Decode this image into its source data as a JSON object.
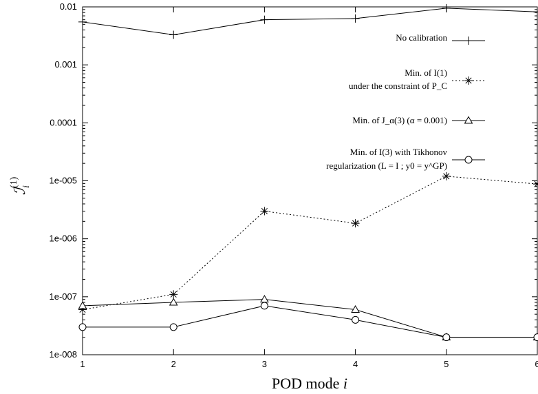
{
  "chart_data": {
    "type": "line",
    "x": [
      1,
      2,
      3,
      4,
      5,
      6
    ],
    "xlabel": "POD mode i",
    "ylabel": "I_i^(1)",
    "xlim": [
      1,
      6
    ],
    "ylim": [
      1e-08,
      0.01
    ],
    "yscale": "log",
    "x_tick_labels": [
      "1",
      "2",
      "3",
      "4",
      "5",
      "6"
    ],
    "y_tick_labels": [
      "1e-008",
      "1e-007",
      "1e-006",
      "1e-005",
      "0.0001",
      "0.001",
      "0.01"
    ],
    "grid": false,
    "legend_position": "top-right",
    "series": [
      {
        "name": "No calibration",
        "values": [
          0.0055,
          0.0033,
          0.006,
          0.0063,
          0.0095,
          0.0082
        ],
        "marker": "plus",
        "line": "solid"
      },
      {
        "name": "Min. of I(1) under the constraint of P_C",
        "legend_lines": [
          "Min. of I(1)",
          "under the constraint of P_C"
        ],
        "values": [
          6e-08,
          1.1e-07,
          3e-06,
          1.85e-06,
          1.2e-05,
          8.8e-06
        ],
        "marker": "asterisk",
        "line": "dotted"
      },
      {
        "name": "Min. of J_α(3) (α = 0.001)",
        "legend_lines": [
          "Min. of J_α(3) (α = 0.001)"
        ],
        "values": [
          7e-08,
          8e-08,
          9e-08,
          6e-08,
          2e-08,
          2e-08
        ],
        "marker": "triangle",
        "line": "solid"
      },
      {
        "name": "Min. of I(3) with Tikhonov regularization (L = I ; y0 = y^GP)",
        "legend_lines": [
          "Min. of I(3) with Tikhonov",
          "regularization (L = I ; y0 = y^GP)"
        ],
        "values": [
          3e-08,
          3e-08,
          7e-08,
          4e-08,
          2e-08,
          2e-08
        ],
        "marker": "circle",
        "line": "solid"
      }
    ]
  }
}
